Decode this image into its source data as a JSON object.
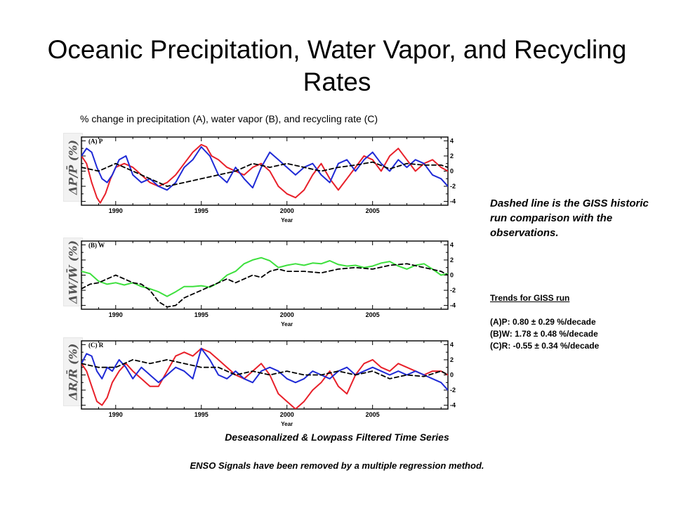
{
  "title": "Oceanic Precipitation, Water Vapor, and Recycling Rates",
  "subtitle": "% change in precipitation (A), water vapor (B), and recycling rate (C)",
  "note": "Dashed line is the GISS historic run comparison with the observations.",
  "trends": {
    "heading": "Trends for GISS run",
    "items": [
      "(A)P: 0.80 ± 0.29 %/decade",
      "(B)W: 1.78 ± 0.48 %/decade",
      "(C)R: -0.55 ± 0.34 %/decade"
    ]
  },
  "footer1": "Deseasonalized & Lowpass Filtered Time Series",
  "footer2": "ENSO Signals have been removed by a multiple regression method.",
  "colors": {
    "red": "#e8202a",
    "blue": "#1f2ad6",
    "green": "#3de03d",
    "dashed": "#000000"
  },
  "chart_data": [
    {
      "type": "line",
      "panel_label": "(A) P",
      "ylabel": "ΔP/P̄ (%)",
      "xlabel": "Year",
      "xlim": [
        1988,
        2009.4
      ],
      "ylim": [
        -4.5,
        4.5
      ],
      "x_ticks": [
        1990,
        1995,
        2000,
        2005
      ],
      "y_ticks": [
        -4,
        -2,
        0,
        2,
        4
      ],
      "series": [
        {
          "style": "solid",
          "color": "red",
          "x": [
            1988.0,
            1988.3,
            1988.6,
            1988.9,
            1989.1,
            1989.4,
            1989.7,
            1990.0,
            1990.5,
            1991.0,
            1991.5,
            1992.0,
            1992.5,
            1993.0,
            1993.5,
            1994.0,
            1994.5,
            1995.0,
            1995.3,
            1995.6,
            1996.0,
            1996.5,
            1997.0,
            1997.5,
            1998.0,
            1998.5,
            1999.0,
            1999.5,
            2000.0,
            2000.5,
            2001.0,
            2001.5,
            2002.0,
            2002.5,
            2003.0,
            2003.5,
            2004.0,
            2004.5,
            2005.0,
            2005.5,
            2006.0,
            2006.5,
            2007.0,
            2007.5,
            2008.0,
            2008.5,
            2009.0,
            2009.4
          ],
          "y": [
            2.0,
            1.0,
            -1.5,
            -3.5,
            -4.2,
            -3.0,
            -1.0,
            0.5,
            1.0,
            0.5,
            -0.5,
            -1.5,
            -2.0,
            -1.5,
            -0.5,
            1.0,
            2.5,
            3.5,
            3.2,
            2.0,
            1.5,
            0.5,
            0.0,
            -0.5,
            0.5,
            1.0,
            0.0,
            -2.0,
            -3.0,
            -3.5,
            -2.5,
            -0.5,
            1.0,
            -1.0,
            -2.5,
            -1.0,
            0.5,
            2.0,
            1.5,
            0.0,
            2.0,
            3.0,
            1.5,
            0.0,
            1.0,
            1.5,
            0.5,
            0.0
          ]
        },
        {
          "style": "solid",
          "color": "blue",
          "x": [
            1988.0,
            1988.3,
            1988.6,
            1988.9,
            1989.2,
            1989.5,
            1989.8,
            1990.2,
            1990.6,
            1991.0,
            1991.5,
            1992.0,
            1992.5,
            1993.0,
            1993.5,
            1994.0,
            1994.5,
            1995.0,
            1995.5,
            1996.0,
            1996.5,
            1997.0,
            1997.5,
            1998.0,
            1998.5,
            1999.0,
            1999.5,
            2000.0,
            2000.5,
            2001.0,
            2001.5,
            2002.0,
            2002.5,
            2003.0,
            2003.5,
            2004.0,
            2004.5,
            2005.0,
            2005.5,
            2006.0,
            2006.5,
            2007.0,
            2007.5,
            2008.0,
            2008.5,
            2009.0,
            2009.4
          ],
          "y": [
            2.0,
            3.0,
            2.5,
            0.5,
            -1.0,
            -1.5,
            -0.5,
            1.5,
            2.0,
            -0.5,
            -1.5,
            -1.0,
            -2.0,
            -2.5,
            -1.5,
            0.5,
            1.5,
            3.2,
            2.0,
            -0.5,
            -1.5,
            0.5,
            -1.0,
            -2.2,
            0.5,
            2.5,
            1.5,
            0.5,
            -0.5,
            0.5,
            1.0,
            -0.5,
            -1.5,
            1.0,
            1.5,
            0.0,
            1.5,
            2.5,
            1.0,
            0.0,
            1.5,
            0.5,
            1.5,
            1.0,
            -0.5,
            -1.0,
            -2.0
          ]
        },
        {
          "style": "dashed",
          "color": "dashed",
          "x": [
            1988.0,
            1989.0,
            1990.0,
            1991.0,
            1992.0,
            1993.0,
            1994.0,
            1995.0,
            1996.0,
            1997.0,
            1998.0,
            1999.0,
            2000.0,
            2001.0,
            2002.0,
            2003.0,
            2004.0,
            2005.0,
            2006.0,
            2007.0,
            2008.0,
            2009.0,
            2009.4
          ],
          "y": [
            0.5,
            0.0,
            1.0,
            0.0,
            -1.0,
            -2.0,
            -1.5,
            -1.0,
            -0.5,
            0.0,
            1.0,
            0.5,
            1.0,
            0.5,
            0.0,
            0.5,
            0.8,
            1.2,
            0.3,
            1.0,
            0.8,
            0.8,
            0.5
          ]
        }
      ]
    },
    {
      "type": "line",
      "panel_label": "(B) W",
      "ylabel": "ΔW/W̄ (%)",
      "xlabel": "Year",
      "xlim": [
        1988,
        2009.4
      ],
      "ylim": [
        -4.5,
        4.5
      ],
      "x_ticks": [
        1990,
        1995,
        2000,
        2005
      ],
      "y_ticks": [
        -4,
        -2,
        0,
        2,
        4
      ],
      "series": [
        {
          "style": "solid",
          "color": "green",
          "x": [
            1988.0,
            1988.5,
            1989.0,
            1989.5,
            1990.0,
            1990.5,
            1991.0,
            1991.5,
            1992.0,
            1992.5,
            1993.0,
            1993.5,
            1994.0,
            1994.5,
            1995.0,
            1995.5,
            1996.0,
            1996.5,
            1997.0,
            1997.5,
            1998.0,
            1998.5,
            1999.0,
            1999.5,
            2000.0,
            2000.5,
            2001.0,
            2001.5,
            2002.0,
            2002.5,
            2003.0,
            2003.5,
            2004.0,
            2004.5,
            2005.0,
            2005.5,
            2006.0,
            2006.5,
            2007.0,
            2007.5,
            2008.0,
            2008.5,
            2009.0,
            2009.4
          ],
          "y": [
            0.5,
            0.2,
            -0.8,
            -1.2,
            -1.0,
            -1.3,
            -1.0,
            -1.5,
            -1.8,
            -2.2,
            -2.8,
            -2.2,
            -1.5,
            -1.5,
            -1.4,
            -1.6,
            -1.0,
            0.0,
            0.5,
            1.5,
            2.0,
            2.3,
            1.9,
            1.0,
            1.3,
            1.5,
            1.3,
            1.6,
            1.5,
            1.9,
            1.4,
            1.2,
            1.3,
            1.0,
            1.2,
            1.6,
            1.8,
            1.2,
            0.8,
            1.3,
            1.5,
            0.8,
            0.0,
            0.2
          ]
        },
        {
          "style": "dashed",
          "color": "dashed",
          "x": [
            1988.0,
            1988.5,
            1989.0,
            1989.5,
            1990.0,
            1990.5,
            1991.0,
            1991.5,
            1992.0,
            1992.5,
            1993.0,
            1993.5,
            1994.0,
            1995.0,
            1995.5,
            1996.0,
            1996.5,
            1997.0,
            1997.5,
            1998.0,
            1998.5,
            1999.0,
            1999.5,
            2000.0,
            2001.0,
            2002.0,
            2003.0,
            2004.0,
            2005.0,
            2006.0,
            2007.0,
            2008.0,
            2009.0,
            2009.4
          ],
          "y": [
            -1.8,
            -1.2,
            -1.0,
            -0.5,
            0.0,
            -0.5,
            -1.0,
            -1.2,
            -2.0,
            -3.5,
            -4.2,
            -4.0,
            -3.0,
            -2.0,
            -1.5,
            -1.0,
            -0.5,
            -1.0,
            -0.5,
            0.0,
            -0.3,
            0.5,
            0.8,
            0.5,
            0.5,
            0.3,
            0.8,
            1.0,
            0.8,
            1.3,
            1.5,
            1.0,
            0.5,
            0.0
          ]
        }
      ]
    },
    {
      "type": "line",
      "panel_label": "(C) R",
      "ylabel": "ΔR/R̄ (%)",
      "xlabel": "Year",
      "xlim": [
        1988,
        2009.4
      ],
      "ylim": [
        -4.5,
        4.5
      ],
      "x_ticks": [
        1990,
        1995,
        2000,
        2005
      ],
      "y_ticks": [
        -4,
        -2,
        0,
        2,
        4
      ],
      "series": [
        {
          "style": "solid",
          "color": "red",
          "x": [
            1988.0,
            1988.3,
            1988.6,
            1988.9,
            1989.2,
            1989.5,
            1989.8,
            1990.2,
            1990.6,
            1991.0,
            1991.5,
            1992.0,
            1992.5,
            1993.0,
            1993.5,
            1994.0,
            1994.5,
            1995.0,
            1995.5,
            1996.0,
            1996.5,
            1997.0,
            1997.5,
            1998.0,
            1998.5,
            1999.0,
            1999.5,
            2000.0,
            2000.5,
            2001.0,
            2001.5,
            2002.0,
            2002.5,
            2003.0,
            2003.5,
            2004.0,
            2004.5,
            2005.0,
            2005.5,
            2006.0,
            2006.5,
            2007.0,
            2007.5,
            2008.0,
            2008.5,
            2009.0,
            2009.4
          ],
          "y": [
            1.5,
            0.5,
            -1.5,
            -3.5,
            -4.0,
            -3.0,
            -1.0,
            0.5,
            1.5,
            0.5,
            -0.5,
            -1.5,
            -1.5,
            0.5,
            2.5,
            3.0,
            2.5,
            3.5,
            3.0,
            2.0,
            1.0,
            0.0,
            -0.5,
            0.5,
            1.5,
            0.0,
            -2.5,
            -3.5,
            -4.5,
            -3.5,
            -2.0,
            -1.0,
            0.5,
            -1.5,
            -2.5,
            0.0,
            1.5,
            2.0,
            1.0,
            0.5,
            1.5,
            1.0,
            0.5,
            0.0,
            0.5,
            0.5,
            0.0
          ]
        },
        {
          "style": "solid",
          "color": "blue",
          "x": [
            1988.0,
            1988.3,
            1988.6,
            1988.9,
            1989.2,
            1989.5,
            1989.8,
            1990.2,
            1990.6,
            1991.0,
            1991.5,
            1992.0,
            1992.5,
            1993.0,
            1993.5,
            1994.0,
            1994.5,
            1995.0,
            1995.5,
            1996.0,
            1996.5,
            1997.0,
            1997.5,
            1998.0,
            1998.5,
            1999.0,
            1999.5,
            2000.0,
            2000.5,
            2001.0,
            2001.5,
            2002.0,
            2002.5,
            2003.0,
            2003.5,
            2004.0,
            2004.5,
            2005.0,
            2005.5,
            2006.0,
            2006.5,
            2007.0,
            2007.5,
            2008.0,
            2008.5,
            2009.0,
            2009.4
          ],
          "y": [
            1.5,
            2.8,
            2.5,
            0.5,
            -0.5,
            1.0,
            0.5,
            2.0,
            1.0,
            -0.5,
            1.0,
            0.0,
            -1.0,
            0.0,
            1.0,
            0.5,
            -0.5,
            3.5,
            2.0,
            0.0,
            -0.5,
            0.5,
            -0.5,
            -1.0,
            0.5,
            1.0,
            0.5,
            -0.5,
            -1.0,
            -0.5,
            0.5,
            0.0,
            -0.5,
            0.5,
            1.0,
            0.0,
            0.5,
            1.0,
            0.5,
            0.0,
            0.5,
            0.0,
            0.5,
            0.0,
            -0.5,
            -1.0,
            -2.0
          ]
        },
        {
          "style": "dashed",
          "color": "dashed",
          "x": [
            1988.0,
            1989.0,
            1990.0,
            1991.0,
            1992.0,
            1993.0,
            1994.0,
            1995.0,
            1996.0,
            1997.0,
            1998.0,
            1999.0,
            2000.0,
            2001.0,
            2002.0,
            2003.0,
            2004.0,
            2005.0,
            2006.0,
            2007.0,
            2008.0,
            2009.0,
            2009.4
          ],
          "y": [
            1.5,
            1.0,
            1.0,
            2.0,
            1.5,
            2.0,
            1.5,
            1.0,
            1.0,
            0.0,
            0.5,
            0.0,
            0.5,
            0.0,
            0.0,
            0.5,
            0.0,
            0.5,
            -0.5,
            0.0,
            -0.2,
            0.5,
            0.0
          ]
        }
      ]
    }
  ]
}
